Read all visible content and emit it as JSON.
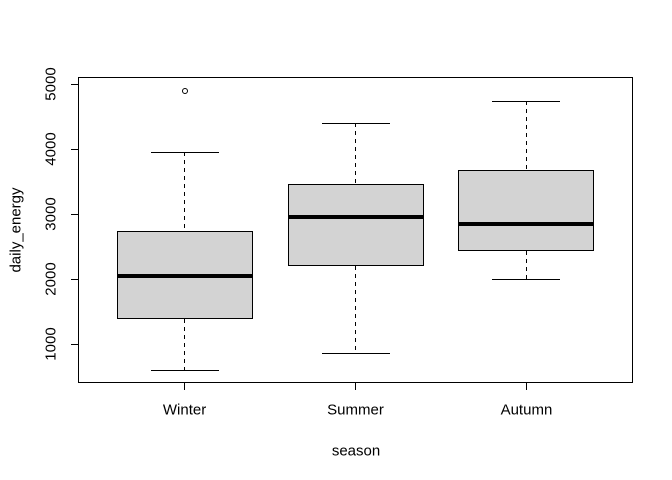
{
  "chart_data": {
    "type": "boxplot",
    "title": "",
    "xlabel": "season",
    "ylabel": "daily_energy",
    "categories": [
      "Winter",
      "Summer",
      "Autumn"
    ],
    "y_ticks": [
      1000,
      2000,
      3000,
      4000,
      5000
    ],
    "ylim": [
      400,
      5110
    ],
    "grid": false,
    "legend": "none",
    "box_fill": "#d3d3d3",
    "line_color": "#000000",
    "background": "#ffffff",
    "series": [
      {
        "name": "Winter",
        "min": 600,
        "q1": 1380,
        "median": 2050,
        "q3": 2740,
        "max": 3950,
        "outliers": [
          4890
        ]
      },
      {
        "name": "Summer",
        "min": 860,
        "q1": 2200,
        "median": 2950,
        "q3": 3470,
        "max": 4400,
        "outliers": []
      },
      {
        "name": "Autumn",
        "min": 2000,
        "q1": 2430,
        "median": 2840,
        "q3": 3680,
        "max": 4740,
        "outliers": []
      }
    ]
  }
}
